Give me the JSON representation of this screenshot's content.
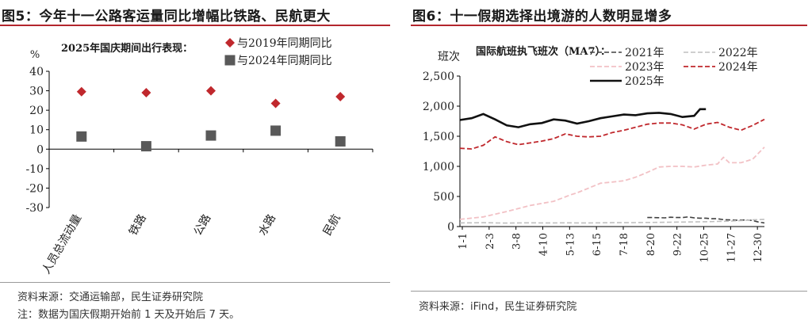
{
  "left_panel": {
    "title": "图5：今年十一公路客运量同比增幅比铁路、民航更大",
    "source": "资料来源：交通运输部，民生证券研究院",
    "note": "注：数据为国庆假期开始前 1 天及开始后 7 天。"
  },
  "right_panel": {
    "title": "图6：十一假期选择出境游的人数明显增多",
    "source": "资料来源：iFind，民生证券研究院"
  },
  "chart_data": [
    {
      "type": "scatter",
      "title": "2025年国庆期间出行表现：",
      "ylabel": "%",
      "ylim": [
        -30,
        40
      ],
      "yticks": [
        -30,
        -20,
        -10,
        0,
        10,
        20,
        30,
        40
      ],
      "categories": [
        "人员总流动量",
        "铁路",
        "公路",
        "水路",
        "民航"
      ],
      "series": [
        {
          "name": "与2019年同期同比",
          "marker": "diamond",
          "color": "#c0282d",
          "values": [
            29.5,
            29,
            30,
            23.5,
            27
          ]
        },
        {
          "name": "与2024年同期同比",
          "marker": "square",
          "color": "#595959",
          "values": [
            6.5,
            1.5,
            7,
            9.5,
            4
          ]
        }
      ],
      "legend_position": "top-right"
    },
    {
      "type": "line",
      "title": "国际航班执飞班次（MA7）：",
      "ylabel": "班次",
      "ylim": [
        0,
        2500
      ],
      "yticks": [
        0,
        500,
        1000,
        1500,
        2000,
        2500
      ],
      "x_tick_labels": [
        "1-1",
        "2-3",
        "3-8",
        "4-10",
        "5-13",
        "6-15",
        "7-18",
        "8-20",
        "9-22",
        "10-25",
        "11-27",
        "12-30"
      ],
      "series": [
        {
          "name": "2021年",
          "style": "dashed",
          "color": "#404040",
          "x": [
            32,
            33,
            34,
            35,
            36,
            37,
            38,
            39,
            40,
            41,
            42,
            43,
            44,
            45,
            46,
            47,
            48,
            49,
            50,
            51,
            52
          ],
          "values": [
            150,
            150,
            148,
            145,
            155,
            150,
            150,
            160,
            145,
            140,
            140,
            130,
            130,
            115,
            110,
            105,
            108,
            110,
            100,
            75,
            60
          ]
        },
        {
          "name": "2022年",
          "style": "dashed",
          "color": "#bfbfbf",
          "x": [
            0,
            2,
            4,
            6,
            8,
            10,
            12,
            14,
            16,
            18,
            20,
            22,
            24,
            26,
            28,
            30,
            32,
            34,
            36,
            38,
            40,
            42,
            44,
            46,
            48,
            50,
            52
          ],
          "values": [
            60,
            62,
            65,
            60,
            58,
            60,
            62,
            60,
            60,
            62,
            60,
            60,
            62,
            64,
            65,
            66,
            68,
            70,
            72,
            75,
            78,
            80,
            85,
            90,
            100,
            110,
            120
          ]
        },
        {
          "name": "2023年",
          "style": "dashed",
          "color": "#f2c1c5",
          "x": [
            0,
            4,
            8,
            12,
            16,
            19,
            20,
            22,
            24,
            26,
            28,
            30,
            32,
            34,
            36,
            38,
            40,
            42,
            44,
            45,
            46,
            48,
            50,
            52
          ],
          "values": [
            120,
            160,
            250,
            350,
            420,
            530,
            560,
            640,
            720,
            740,
            760,
            820,
            900,
            990,
            1000,
            1000,
            990,
            1020,
            1040,
            1150,
            1060,
            1060,
            1120,
            1320
          ]
        },
        {
          "name": "2024年",
          "style": "dashed",
          "color": "#c0282d",
          "x": [
            0,
            2,
            4,
            6,
            8,
            10,
            12,
            14,
            16,
            18,
            20,
            22,
            24,
            26,
            28,
            30,
            32,
            34,
            36,
            38,
            40,
            42,
            44,
            46,
            48,
            50,
            52
          ],
          "values": [
            1300,
            1290,
            1350,
            1490,
            1410,
            1360,
            1390,
            1420,
            1460,
            1540,
            1500,
            1490,
            1500,
            1560,
            1600,
            1650,
            1700,
            1720,
            1720,
            1690,
            1620,
            1700,
            1730,
            1650,
            1600,
            1680,
            1780
          ]
        },
        {
          "name": "2025年",
          "style": "solid",
          "color": "#111111",
          "x": [
            0,
            2,
            4,
            6,
            8,
            10,
            12,
            14,
            16,
            18,
            20,
            22,
            24,
            26,
            28,
            30,
            32,
            34,
            36,
            38,
            40,
            41,
            42
          ],
          "values": [
            1770,
            1800,
            1870,
            1780,
            1680,
            1650,
            1700,
            1720,
            1780,
            1760,
            1710,
            1750,
            1800,
            1830,
            1860,
            1850,
            1880,
            1890,
            1870,
            1820,
            1840,
            1950,
            1950
          ]
        }
      ],
      "legend_position": "top-right"
    }
  ]
}
